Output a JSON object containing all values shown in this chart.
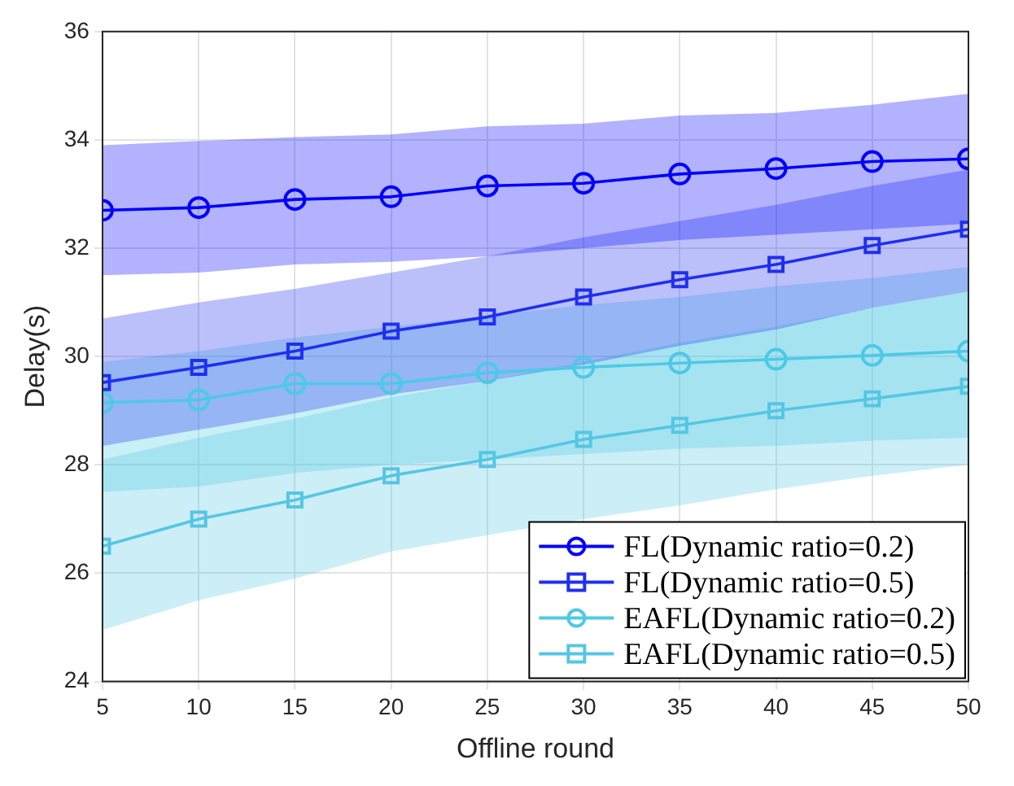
{
  "chart_data": {
    "type": "line",
    "xlabel": "Offline round",
    "ylabel": "Delay(s)",
    "x": [
      5,
      10,
      15,
      20,
      25,
      30,
      35,
      40,
      45,
      50
    ],
    "xlim": [
      5,
      50
    ],
    "xticks": [
      5,
      10,
      15,
      20,
      25,
      30,
      35,
      40,
      45,
      50
    ],
    "ylim": [
      24,
      36
    ],
    "yticks": [
      24,
      26,
      28,
      30,
      32,
      34,
      36
    ],
    "grid": true,
    "legend": "bottom right",
    "series": [
      {
        "name": "FL(Dynamic ratio=0.2)",
        "color": "#0000ff",
        "marker": "circle",
        "values": [
          32.7,
          32.75,
          32.9,
          32.95,
          33.15,
          33.2,
          33.37,
          33.47,
          33.6,
          33.65
        ],
        "upper": [
          33.9,
          33.98,
          34.05,
          34.1,
          34.25,
          34.3,
          34.45,
          34.5,
          34.65,
          34.85
        ],
        "lower": [
          31.5,
          31.55,
          31.7,
          31.75,
          31.85,
          32.0,
          32.15,
          32.25,
          32.35,
          32.45
        ]
      },
      {
        "name": "FL(Dynamic ratio=0.5)",
        "color": "#1f2ff0",
        "marker": "square",
        "values": [
          29.52,
          29.8,
          30.1,
          30.47,
          30.73,
          31.1,
          31.42,
          31.7,
          32.05,
          32.35
        ],
        "upper": [
          30.7,
          31.0,
          31.25,
          31.55,
          31.85,
          32.2,
          32.5,
          32.8,
          33.15,
          33.45
        ],
        "lower": [
          28.35,
          28.65,
          28.95,
          29.3,
          29.55,
          29.85,
          30.2,
          30.5,
          30.9,
          31.2
        ]
      },
      {
        "name": "EAFL(Dynamic ratio=0.2)",
        "color": "#4dc9e6",
        "marker": "circle",
        "values": [
          29.15,
          29.2,
          29.5,
          29.5,
          29.7,
          29.8,
          29.88,
          29.95,
          30.02,
          30.1
        ],
        "upper": [
          29.9,
          30.1,
          30.35,
          30.55,
          30.75,
          30.95,
          31.1,
          31.3,
          31.45,
          31.65
        ],
        "lower": [
          27.5,
          27.6,
          27.85,
          28.0,
          28.1,
          28.2,
          28.3,
          28.35,
          28.45,
          28.5
        ]
      },
      {
        "name": "EAFL(Dynamic ratio=0.5)",
        "color": "#55c6e3",
        "marker": "square",
        "values": [
          26.5,
          27.0,
          27.35,
          27.8,
          28.1,
          28.47,
          28.73,
          29.0,
          29.22,
          29.45
        ],
        "upper": [
          28.1,
          28.5,
          28.85,
          29.25,
          29.55,
          29.9,
          30.25,
          30.55,
          30.9,
          31.2
        ],
        "lower": [
          24.95,
          25.5,
          25.9,
          26.4,
          26.7,
          27.0,
          27.25,
          27.55,
          27.8,
          28.0
        ]
      }
    ]
  }
}
